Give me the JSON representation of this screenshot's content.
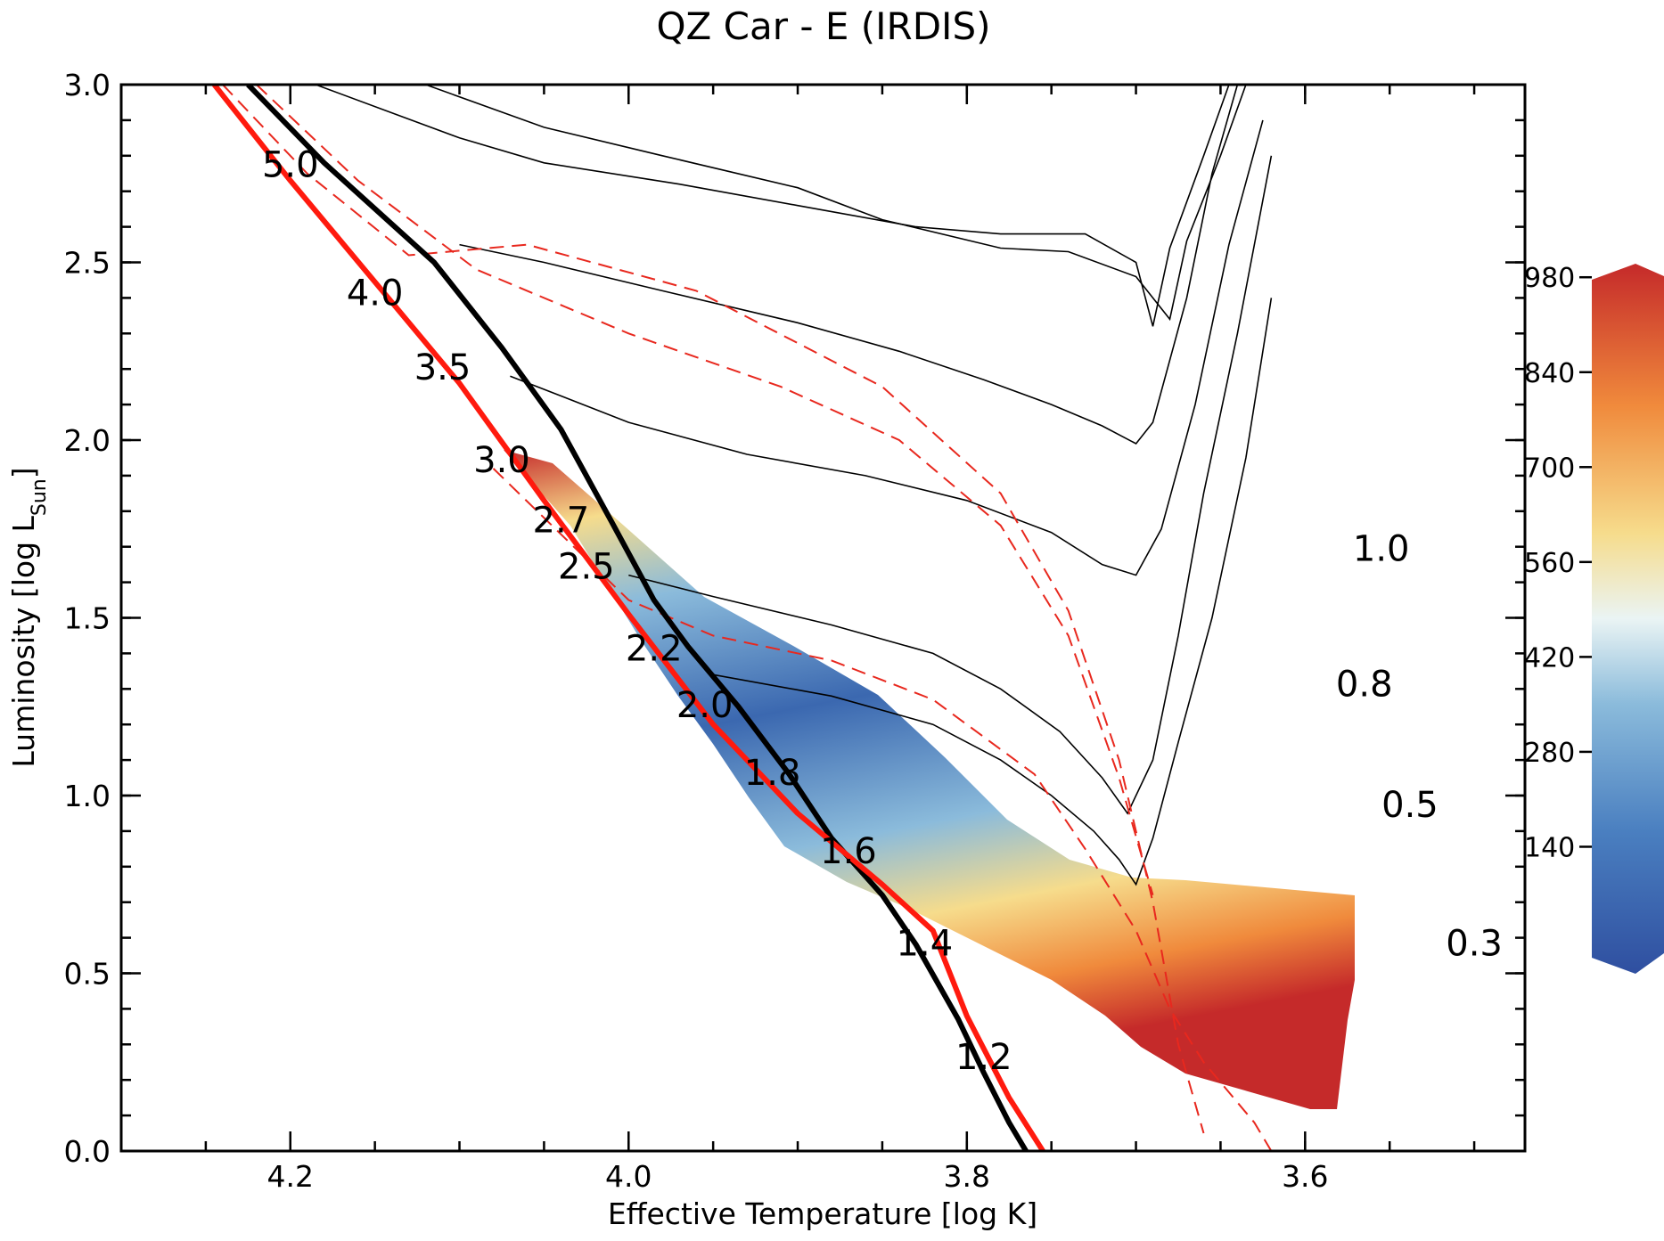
{
  "chart_data": {
    "type": "hr_diagram",
    "title": "QZ Car - E (IRDIS)",
    "xlabel": "Effective Temperature [log K]",
    "ylabel_main": "Luminosity [log L",
    "ylabel_sub": "Sun",
    "ylabel_end": "]",
    "xlim": [
      4.3,
      3.47
    ],
    "ylim": [
      0.0,
      3.0
    ],
    "x_ticks": [
      {
        "value": 4.2,
        "label": "4.2"
      },
      {
        "value": 4.0,
        "label": "4.0"
      },
      {
        "value": 3.8,
        "label": "3.8"
      },
      {
        "value": 3.6,
        "label": "3.6"
      }
    ],
    "y_ticks": [
      {
        "value": 0.0,
        "label": "0.0"
      },
      {
        "value": 0.5,
        "label": "0.5"
      },
      {
        "value": 1.0,
        "label": "1.0"
      },
      {
        "value": 1.5,
        "label": "1.5"
      },
      {
        "value": 2.0,
        "label": "2.0"
      },
      {
        "value": 2.5,
        "label": "2.5"
      },
      {
        "value": 3.0,
        "label": "3.0"
      }
    ],
    "colorbar": {
      "ticks": [
        "140",
        "280",
        "420",
        "560",
        "700",
        "840",
        "980"
      ],
      "colors": [
        "#2f4fa0",
        "#4a7fc0",
        "#8bbbdb",
        "#eaf4f4",
        "#f6dc8c",
        "#f08a3c",
        "#c52a2a"
      ]
    },
    "mass_labels": [
      {
        "label": "5.0",
        "x": 4.2,
        "y": 2.74
      },
      {
        "label": "4.0",
        "x": 4.15,
        "y": 2.38
      },
      {
        "label": "3.5",
        "x": 4.11,
        "y": 2.17
      },
      {
        "label": "3.0",
        "x": 4.075,
        "y": 1.91
      },
      {
        "label": "2.7",
        "x": 4.04,
        "y": 1.74
      },
      {
        "label": "2.5",
        "x": 4.025,
        "y": 1.61
      },
      {
        "label": "2.2",
        "x": 3.985,
        "y": 1.38
      },
      {
        "label": "2.0",
        "x": 3.955,
        "y": 1.22
      },
      {
        "label": "1.8",
        "x": 3.915,
        "y": 1.03
      },
      {
        "label": "1.6",
        "x": 3.87,
        "y": 0.81
      },
      {
        "label": "1.4",
        "x": 3.825,
        "y": 0.55
      },
      {
        "label": "1.2",
        "x": 3.79,
        "y": 0.23
      },
      {
        "label": "1.0",
        "x": 3.555,
        "y": 1.66
      },
      {
        "label": "0.8",
        "x": 3.565,
        "y": 1.28
      },
      {
        "label": "0.5",
        "x": 3.538,
        "y": 0.94
      },
      {
        "label": "0.3",
        "x": 3.5,
        "y": 0.55
      }
    ],
    "zams": [
      [
        4.245,
        3.0
      ],
      [
        4.2,
        2.73
      ],
      [
        4.1,
        2.16
      ],
      [
        4.05,
        1.83
      ],
      [
        4.0,
        1.51
      ],
      [
        3.95,
        1.2
      ],
      [
        3.9,
        0.95
      ],
      [
        3.85,
        0.75
      ],
      [
        3.82,
        0.62
      ],
      [
        3.8,
        0.38
      ],
      [
        3.775,
        0.15
      ],
      [
        3.755,
        0.0
      ]
    ],
    "isochrones_thick": [
      [
        [
          4.225,
          3.0
        ],
        [
          4.18,
          2.78
        ],
        [
          4.115,
          2.5
        ],
        [
          4.075,
          2.26
        ],
        [
          4.04,
          2.03
        ],
        [
          4.01,
          1.77
        ],
        [
          3.985,
          1.55
        ],
        [
          3.965,
          1.42
        ],
        [
          3.935,
          1.25
        ],
        [
          3.905,
          1.06
        ],
        [
          3.88,
          0.88
        ],
        [
          3.85,
          0.72
        ],
        [
          3.83,
          0.58
        ],
        [
          3.805,
          0.37
        ],
        [
          3.79,
          0.22
        ],
        [
          3.775,
          0.08
        ],
        [
          3.765,
          0.0
        ]
      ]
    ],
    "main_tracks": [
      [
        [
          4.185,
          3.0
        ],
        [
          4.1,
          2.85
        ],
        [
          4.05,
          2.78
        ],
        [
          3.97,
          2.72
        ],
        [
          3.9,
          2.66
        ],
        [
          3.83,
          2.6
        ],
        [
          3.78,
          2.58
        ],
        [
          3.73,
          2.58
        ],
        [
          3.7,
          2.5
        ],
        [
          3.69,
          2.32
        ],
        [
          3.68,
          2.54
        ],
        [
          3.66,
          2.8
        ],
        [
          3.645,
          3.0
        ]
      ],
      [
        [
          4.12,
          3.0
        ],
        [
          4.05,
          2.88
        ],
        [
          3.98,
          2.8
        ],
        [
          3.9,
          2.71
        ],
        [
          3.85,
          2.62
        ],
        [
          3.78,
          2.54
        ],
        [
          3.74,
          2.53
        ],
        [
          3.7,
          2.46
        ],
        [
          3.68,
          2.34
        ],
        [
          3.67,
          2.56
        ],
        [
          3.65,
          2.8
        ],
        [
          3.635,
          3.0
        ]
      ],
      [
        [
          4.1,
          2.55
        ],
        [
          4.05,
          2.5
        ],
        [
          3.98,
          2.42
        ],
        [
          3.9,
          2.33
        ],
        [
          3.84,
          2.25
        ],
        [
          3.79,
          2.17
        ],
        [
          3.75,
          2.1
        ],
        [
          3.72,
          2.04
        ],
        [
          3.7,
          1.99
        ],
        [
          3.69,
          2.05
        ],
        [
          3.67,
          2.4
        ],
        [
          3.655,
          2.75
        ],
        [
          3.64,
          3.0
        ]
      ],
      [
        [
          4.07,
          2.18
        ],
        [
          4.0,
          2.05
        ],
        [
          3.93,
          1.96
        ],
        [
          3.86,
          1.9
        ],
        [
          3.8,
          1.83
        ],
        [
          3.75,
          1.74
        ],
        [
          3.72,
          1.65
        ],
        [
          3.7,
          1.62
        ],
        [
          3.685,
          1.75
        ],
        [
          3.665,
          2.1
        ],
        [
          3.645,
          2.55
        ],
        [
          3.625,
          2.9
        ]
      ],
      [
        [
          4.0,
          1.62
        ],
        [
          3.95,
          1.56
        ],
        [
          3.88,
          1.48
        ],
        [
          3.82,
          1.4
        ],
        [
          3.78,
          1.3
        ],
        [
          3.745,
          1.18
        ],
        [
          3.72,
          1.05
        ],
        [
          3.705,
          0.95
        ],
        [
          3.69,
          1.1
        ],
        [
          3.675,
          1.45
        ],
        [
          3.66,
          1.85
        ],
        [
          3.64,
          2.3
        ],
        [
          3.62,
          2.8
        ]
      ],
      [
        [
          3.95,
          1.34
        ],
        [
          3.88,
          1.28
        ],
        [
          3.82,
          1.2
        ],
        [
          3.78,
          1.1
        ],
        [
          3.75,
          1.0
        ],
        [
          3.725,
          0.9
        ],
        [
          3.71,
          0.82
        ],
        [
          3.7,
          0.75
        ],
        [
          3.69,
          0.88
        ],
        [
          3.675,
          1.15
        ],
        [
          3.655,
          1.5
        ],
        [
          3.635,
          1.95
        ],
        [
          3.62,
          2.4
        ]
      ]
    ],
    "red_dashed": [
      [
        [
          4.24,
          3.0
        ],
        [
          4.19,
          2.75
        ],
        [
          4.13,
          2.52
        ],
        [
          4.06,
          2.55
        ],
        [
          3.96,
          2.42
        ],
        [
          3.85,
          2.15
        ],
        [
          3.78,
          1.85
        ],
        [
          3.74,
          1.52
        ],
        [
          3.71,
          1.1
        ],
        [
          3.69,
          0.7
        ],
        [
          3.675,
          0.3
        ],
        [
          3.66,
          0.05
        ]
      ],
      [
        [
          4.22,
          3.0
        ],
        [
          4.16,
          2.73
        ],
        [
          4.09,
          2.48
        ],
        [
          4.0,
          2.3
        ],
        [
          3.91,
          2.15
        ],
        [
          3.84,
          2.0
        ],
        [
          3.78,
          1.76
        ],
        [
          3.74,
          1.45
        ],
        [
          3.71,
          1.05
        ],
        [
          3.69,
          0.72
        ]
      ],
      [
        [
          4.08,
          1.92
        ],
        [
          4.0,
          1.55
        ],
        [
          3.95,
          1.45
        ],
        [
          3.88,
          1.38
        ],
        [
          3.82,
          1.27
        ],
        [
          3.76,
          1.06
        ],
        [
          3.73,
          0.85
        ],
        [
          3.7,
          0.62
        ],
        [
          3.68,
          0.4
        ],
        [
          3.66,
          0.25
        ],
        [
          3.63,
          0.08
        ],
        [
          3.62,
          0.0
        ]
      ]
    ]
  }
}
